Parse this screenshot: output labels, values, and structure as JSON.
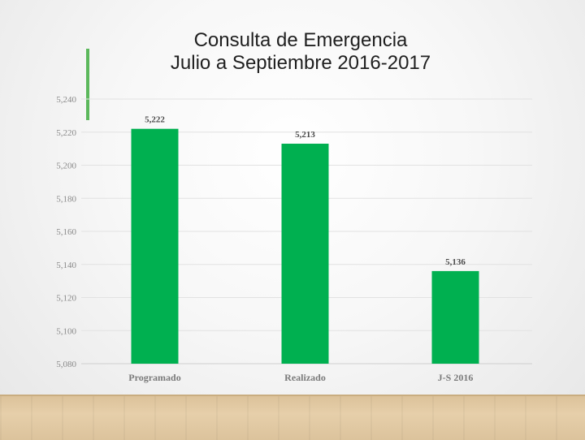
{
  "slide": {
    "title_line1": "Consulta de Emergencia",
    "title_line2": "Julio a Septiembre 2016-2017",
    "accent_color": "#5cb85c"
  },
  "chart_data": {
    "type": "bar",
    "categories": [
      "Programado",
      "Realizado",
      "J-S 2016"
    ],
    "values": [
      5222,
      5213,
      5136
    ],
    "data_labels": [
      "5,222",
      "5,213",
      "5,136"
    ],
    "yticks": [
      "5,080",
      "5,100",
      "5,120",
      "5,140",
      "5,160",
      "5,180",
      "5,200",
      "5,220",
      "5,240"
    ],
    "ylim": [
      5080,
      5240
    ],
    "grid": true,
    "bar_color": "#00b050",
    "title": "",
    "xlabel": "",
    "ylabel": ""
  }
}
